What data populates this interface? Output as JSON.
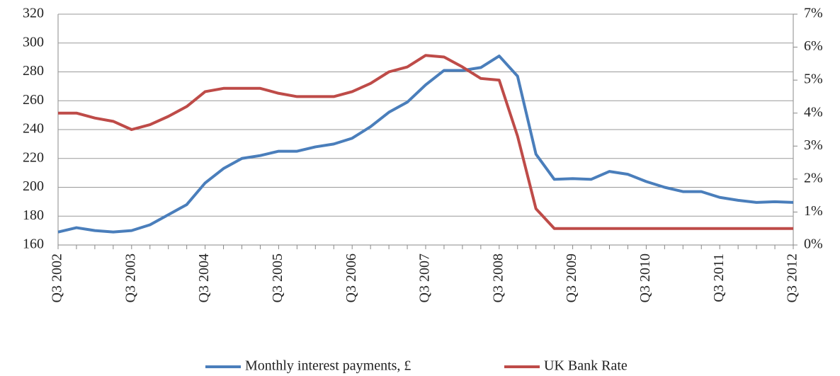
{
  "chart_data": {
    "type": "line",
    "categories": [
      "Q3 2002",
      null,
      null,
      null,
      "Q3 2003",
      null,
      null,
      null,
      "Q3 2004",
      null,
      null,
      null,
      "Q3 2005",
      null,
      null,
      null,
      "Q3 2006",
      null,
      null,
      null,
      "Q3 2007",
      null,
      null,
      null,
      "Q3 2008",
      null,
      null,
      null,
      "Q3 2009",
      null,
      null,
      null,
      "Q3 2010",
      null,
      null,
      null,
      "Q3 2011",
      null,
      null,
      null,
      "Q3 2012"
    ],
    "series": [
      {
        "name": "Monthly interest payments, £",
        "color": "#4a7ebb",
        "values": [
          169,
          172,
          170,
          169,
          170,
          174,
          181,
          188,
          203,
          213,
          220,
          222,
          225,
          225,
          228,
          230,
          234,
          242,
          252,
          259,
          271,
          281,
          281,
          283,
          291,
          277,
          223,
          205.5,
          206,
          205.5,
          211,
          209,
          204,
          200,
          197,
          197,
          193,
          191,
          189.5,
          190,
          189.5
        ]
      },
      {
        "name": "UK Bank Rate",
        "color": "#be4b48",
        "axis": "y2",
        "values": [
          4.0,
          4.0,
          3.85,
          3.75,
          3.5,
          3.65,
          3.9,
          4.2,
          4.65,
          4.75,
          4.75,
          4.75,
          4.6,
          4.5,
          4.5,
          4.5,
          4.65,
          4.9,
          5.25,
          5.4,
          5.75,
          5.7,
          5.4,
          5.05,
          5.0,
          3.3,
          1.1,
          0.5,
          0.5,
          0.5,
          0.5,
          0.5,
          0.5,
          0.5,
          0.5,
          0.5,
          0.5,
          0.5,
          0.5,
          0.5,
          0.5
        ]
      }
    ],
    "ylim": [
      160,
      320
    ],
    "yticks": [
      160,
      180,
      200,
      220,
      240,
      260,
      280,
      300,
      320
    ],
    "y2lim": [
      0,
      7
    ],
    "y2ticks": [
      {
        "value": 0,
        "label": "0%"
      },
      {
        "value": 1,
        "label": "1%"
      },
      {
        "value": 2,
        "label": "2%"
      },
      {
        "value": 3,
        "label": "3%"
      },
      {
        "value": 4,
        "label": "4%"
      },
      {
        "value": 5,
        "label": "5%"
      },
      {
        "value": 6,
        "label": "6%"
      },
      {
        "value": 7,
        "label": "7%"
      }
    ],
    "grid": true,
    "legend": "bottom"
  }
}
